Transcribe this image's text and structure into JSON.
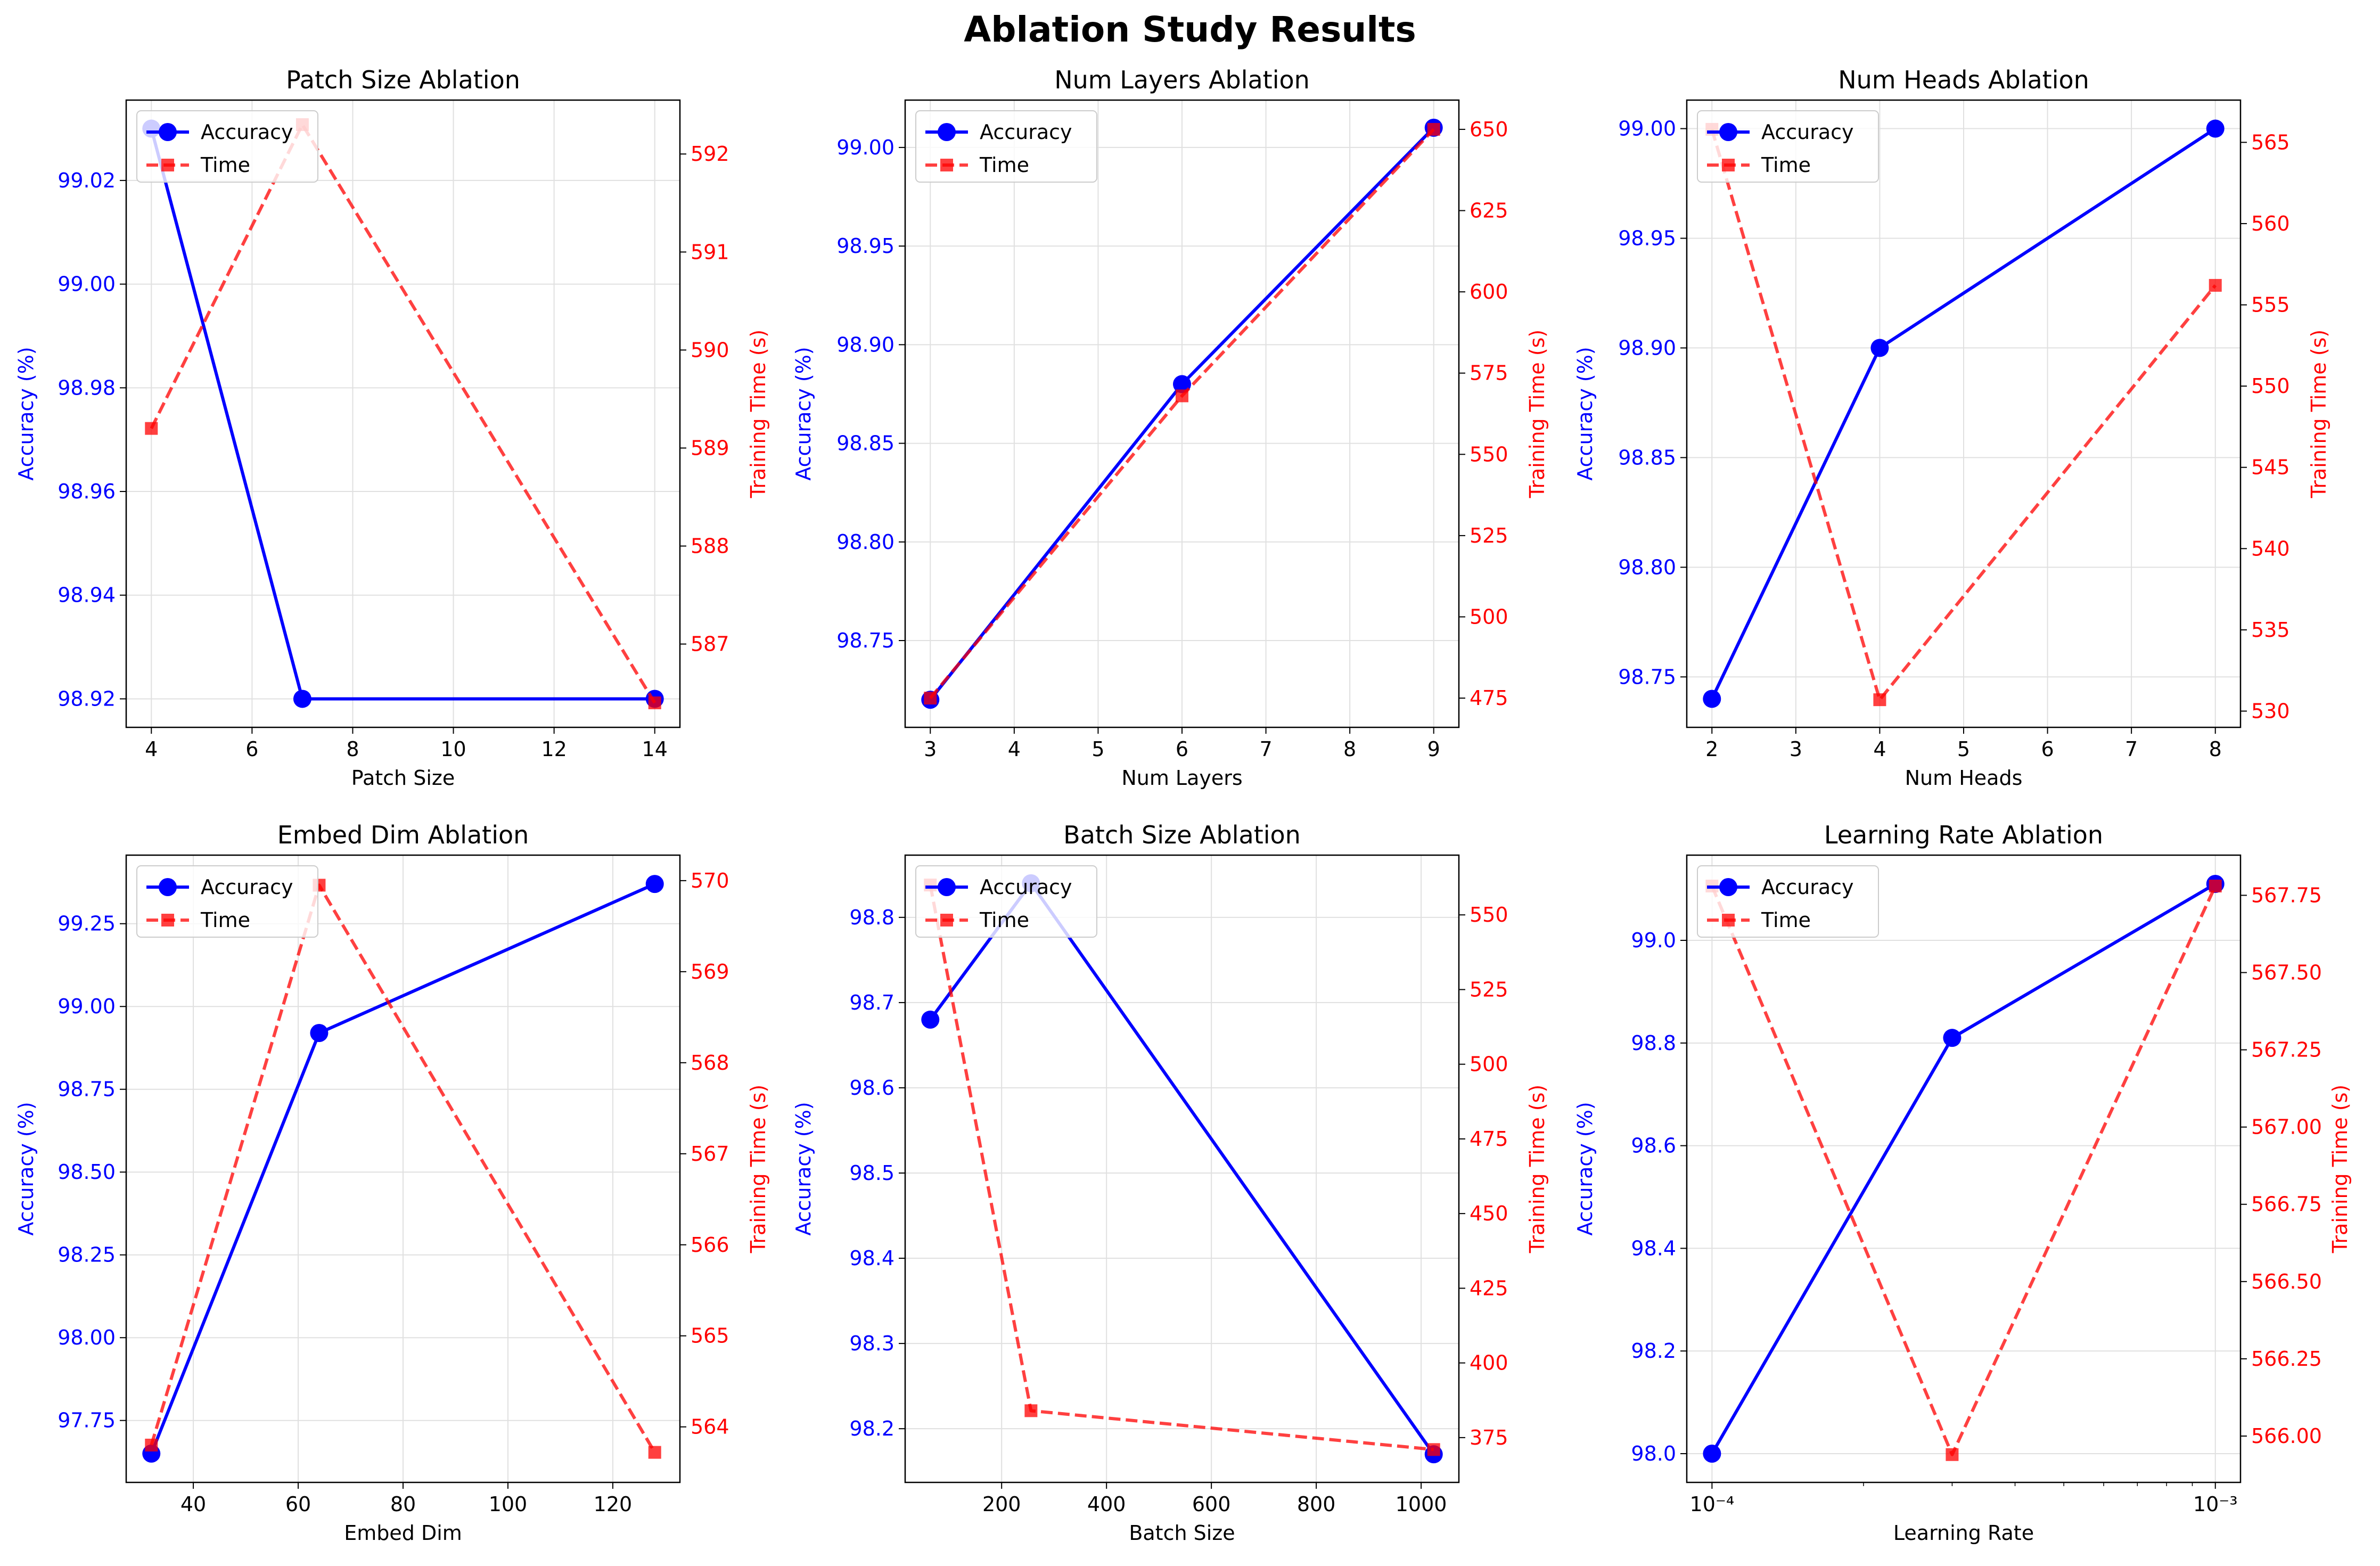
{
  "figure": {
    "title": "Ablation Study Results"
  },
  "colors": {
    "accuracy": "#0000ff",
    "time": "#ff0000",
    "grid": "#e0e0e0"
  },
  "chart_data": [
    {
      "type": "line",
      "title": "Patch Size Ablation",
      "xlabel": "Patch Size",
      "ylabel": "Accuracy (%)",
      "y2label": "Training Time (s)",
      "xscale": "linear",
      "xlim": [
        3.5,
        14.5
      ],
      "xticks": [
        4,
        6,
        8,
        10,
        12,
        14
      ],
      "xticklabels": [
        "4",
        "6",
        "8",
        "10",
        "12",
        "14"
      ],
      "ylim": [
        98.9145,
        99.0355
      ],
      "yticks": [
        98.92,
        98.94,
        98.96,
        98.98,
        99.0,
        99.02
      ],
      "yticklabels": [
        "98.92",
        "98.94",
        "98.96",
        "98.98",
        "99.00",
        "99.02"
      ],
      "y2lim": [
        586.15,
        592.55
      ],
      "y2ticks": [
        587,
        588,
        589,
        590,
        591,
        592
      ],
      "y2ticklabels": [
        "587",
        "588",
        "589",
        "590",
        "591",
        "592"
      ],
      "x": [
        4,
        7,
        14
      ],
      "series": [
        {
          "name": "Accuracy",
          "axis": "left",
          "values": [
            99.03,
            98.92,
            98.92
          ]
        },
        {
          "name": "Time",
          "axis": "right",
          "values": [
            589.2,
            592.3,
            586.4
          ]
        }
      ],
      "grid": true,
      "legend": "upper left"
    },
    {
      "type": "line",
      "title": "Num Layers Ablation",
      "xlabel": "Num Layers",
      "ylabel": "Accuracy (%)",
      "y2label": "Training Time (s)",
      "xscale": "linear",
      "xlim": [
        2.7,
        9.3
      ],
      "xticks": [
        3,
        4,
        5,
        6,
        7,
        8,
        9
      ],
      "xticklabels": [
        "3",
        "4",
        "5",
        "6",
        "7",
        "8",
        "9"
      ],
      "ylim": [
        98.706,
        99.024
      ],
      "yticks": [
        98.75,
        98.8,
        98.85,
        98.9,
        98.95,
        99.0
      ],
      "yticklabels": [
        "98.75",
        "98.80",
        "98.85",
        "98.90",
        "98.95",
        "99.00"
      ],
      "y2lim": [
        466,
        659
      ],
      "y2ticks": [
        475,
        500,
        525,
        550,
        575,
        600,
        625,
        650
      ],
      "y2ticklabels": [
        "475",
        "500",
        "525",
        "550",
        "575",
        "600",
        "625",
        "650"
      ],
      "x": [
        3,
        6,
        9
      ],
      "series": [
        {
          "name": "Accuracy",
          "axis": "left",
          "values": [
            98.72,
            98.88,
            99.01
          ]
        },
        {
          "name": "Time",
          "axis": "right",
          "values": [
            475,
            568,
            650
          ]
        }
      ],
      "grid": true,
      "legend": "upper left"
    },
    {
      "type": "line",
      "title": "Num Heads Ablation",
      "xlabel": "Num Heads",
      "ylabel": "Accuracy (%)",
      "y2label": "Training Time (s)",
      "xscale": "linear",
      "xlim": [
        1.7,
        8.3
      ],
      "xticks": [
        2,
        3,
        4,
        5,
        6,
        7,
        8
      ],
      "xticklabels": [
        "2",
        "3",
        "4",
        "5",
        "6",
        "7",
        "8"
      ],
      "ylim": [
        98.727,
        99.013
      ],
      "yticks": [
        98.75,
        98.8,
        98.85,
        98.9,
        98.95,
        99.0
      ],
      "yticklabels": [
        "98.75",
        "98.80",
        "98.85",
        "98.90",
        "98.95",
        "99.00"
      ],
      "y2lim": [
        529.0,
        567.6
      ],
      "y2ticks": [
        530,
        535,
        540,
        545,
        550,
        555,
        560,
        565
      ],
      "y2ticklabels": [
        "530",
        "535",
        "540",
        "545",
        "550",
        "555",
        "560",
        "565"
      ],
      "x": [
        2,
        4,
        8
      ],
      "series": [
        {
          "name": "Accuracy",
          "axis": "left",
          "values": [
            98.74,
            98.9,
            99.0
          ]
        },
        {
          "name": "Time",
          "axis": "right",
          "values": [
            565.8,
            530.7,
            556.2
          ]
        }
      ],
      "grid": true,
      "legend": "upper left"
    },
    {
      "type": "line",
      "title": "Embed Dim Ablation",
      "xlabel": "Embed Dim",
      "ylabel": "Accuracy (%)",
      "y2label": "Training Time (s)",
      "xscale": "linear",
      "xlim": [
        27.2,
        132.8
      ],
      "xticks": [
        40,
        60,
        80,
        100,
        120
      ],
      "xticklabels": [
        "40",
        "60",
        "80",
        "100",
        "120"
      ],
      "ylim": [
        97.563,
        99.457
      ],
      "yticks": [
        97.75,
        98.0,
        98.25,
        98.5,
        98.75,
        99.0,
        99.25
      ],
      "yticklabels": [
        "97.75",
        "98.00",
        "98.25",
        "98.50",
        "98.75",
        "99.00",
        "99.25"
      ],
      "y2lim": [
        563.39,
        570.28
      ],
      "y2ticks": [
        564,
        565,
        566,
        567,
        568,
        569,
        570
      ],
      "y2ticklabels": [
        "564",
        "565",
        "566",
        "567",
        "568",
        "569",
        "570"
      ],
      "x": [
        32,
        64,
        128
      ],
      "series": [
        {
          "name": "Accuracy",
          "axis": "left",
          "values": [
            97.65,
            98.92,
            99.37
          ]
        },
        {
          "name": "Time",
          "axis": "right",
          "values": [
            563.8,
            569.95,
            563.72
          ]
        }
      ],
      "grid": true,
      "legend": "upper left"
    },
    {
      "type": "line",
      "title": "Batch Size Ablation",
      "xlabel": "Batch Size",
      "ylabel": "Accuracy (%)",
      "y2label": "Training Time (s)",
      "xscale": "linear",
      "xlim": [
        16,
        1072
      ],
      "xticks": [
        200,
        400,
        600,
        800,
        1000
      ],
      "xticklabels": [
        "200",
        "400",
        "600",
        "800",
        "1000"
      ],
      "ylim": [
        98.137,
        98.873
      ],
      "yticks": [
        98.2,
        98.3,
        98.4,
        98.5,
        98.6,
        98.7,
        98.8
      ],
      "yticklabels": [
        "98.2",
        "98.3",
        "98.4",
        "98.5",
        "98.6",
        "98.7",
        "98.8"
      ],
      "y2lim": [
        360,
        570
      ],
      "y2ticks": [
        375,
        400,
        425,
        450,
        475,
        500,
        525,
        550
      ],
      "y2ticklabels": [
        "375",
        "400",
        "425",
        "450",
        "475",
        "500",
        "525",
        "550"
      ],
      "x": [
        64,
        256,
        1024
      ],
      "series": [
        {
          "name": "Accuracy",
          "axis": "left",
          "values": [
            98.68,
            98.84,
            98.17
          ]
        },
        {
          "name": "Time",
          "axis": "right",
          "values": [
            560,
            384,
            371
          ]
        }
      ],
      "grid": true,
      "legend": "upper left"
    },
    {
      "type": "line",
      "title": "Learning Rate Ablation",
      "xlabel": "Learning Rate",
      "ylabel": "Accuracy (%)",
      "y2label": "Training Time (s)",
      "xscale": "log",
      "xlim": [
        8.91e-05,
        0.001122
      ],
      "xticks": [
        0.0001,
        0.001
      ],
      "xticklabels": [
        "10⁻⁴",
        "10⁻³"
      ],
      "xminorticks": [
        0.0002,
        0.0003,
        0.0004,
        0.0005,
        0.0006,
        0.0007,
        0.0008,
        0.0009
      ],
      "ylim": [
        97.944,
        99.166
      ],
      "yticks": [
        98.0,
        98.2,
        98.4,
        98.6,
        98.8,
        99.0
      ],
      "yticklabels": [
        "98.0",
        "98.2",
        "98.4",
        "98.6",
        "98.8",
        "99.0"
      ],
      "y2lim": [
        565.85,
        567.88
      ],
      "y2ticks": [
        566.0,
        566.25,
        566.5,
        566.75,
        567.0,
        567.25,
        567.5,
        567.75
      ],
      "y2ticklabels": [
        "566.00",
        "566.25",
        "566.50",
        "566.75",
        "567.00",
        "567.25",
        "567.50",
        "567.75"
      ],
      "x": [
        0.0001,
        0.0003,
        0.001
      ],
      "series": [
        {
          "name": "Accuracy",
          "axis": "left",
          "values": [
            98.0,
            98.81,
            99.11
          ]
        },
        {
          "name": "Time",
          "axis": "right",
          "values": [
            567.78,
            565.94,
            567.78
          ]
        }
      ],
      "grid": true,
      "legend": "upper left"
    }
  ]
}
